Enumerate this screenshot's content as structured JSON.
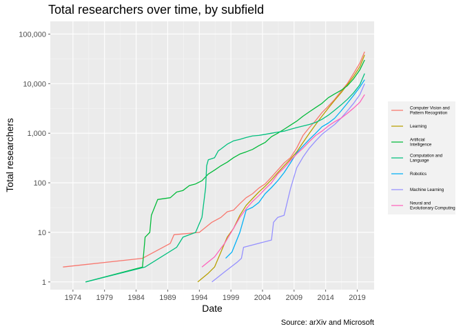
{
  "chart_data": {
    "type": "line",
    "title": "Total researchers over time, by subfield",
    "xlabel": "Date",
    "ylabel": "Total researchers",
    "caption": "Source: arXiv and Microsoft",
    "x_scale": "date",
    "y_scale": "log10",
    "xlim": [
      "1970-06-01",
      "2021-09-01"
    ],
    "ylim": [
      0.7,
      180000
    ],
    "x_ticks": [
      "1974-01-01",
      "1979-01-01",
      "1984-01-01",
      "1989-01-01",
      "1994-01-01",
      "1999-01-01",
      "2004-01-01",
      "2009-01-01",
      "2014-01-01",
      "2019-01-01"
    ],
    "x_tick_labels": [
      "1974",
      "1979",
      "1984",
      "1989",
      "1994",
      "1999",
      "2004",
      "2009",
      "2014",
      "2019"
    ],
    "y_ticks": [
      1,
      10,
      100,
      1000,
      10000,
      100000
    ],
    "y_tick_labels": [
      "1",
      "10",
      "100",
      "1,000",
      "10,000",
      "100,000"
    ],
    "grid": true,
    "legend_position": "right",
    "background": "#ebebeb",
    "series": [
      {
        "name": "Computer Vision and Pattern Recognition",
        "color": "#f8766d",
        "points": [
          [
            "1972-06-01",
            2
          ],
          [
            "1985-01-01",
            3
          ],
          [
            "1989-06-01",
            6
          ],
          [
            "1990-01-01",
            9
          ],
          [
            "1994-01-01",
            10
          ],
          [
            "1996-01-01",
            16
          ],
          [
            "1997-06-01",
            20
          ],
          [
            "1998-06-01",
            26
          ],
          [
            "1999-06-01",
            28
          ],
          [
            "2000-06-01",
            38
          ],
          [
            "2001-06-01",
            50
          ],
          [
            "2002-06-01",
            60
          ],
          [
            "2003-06-01",
            78
          ],
          [
            "2004-06-01",
            95
          ],
          [
            "2005-06-01",
            130
          ],
          [
            "2006-06-01",
            180
          ],
          [
            "2007-06-01",
            250
          ],
          [
            "2008-06-01",
            320
          ],
          [
            "2009-06-01",
            500
          ],
          [
            "2010-06-01",
            900
          ],
          [
            "2011-06-01",
            1300
          ],
          [
            "2012-06-01",
            1800
          ],
          [
            "2013-06-01",
            2600
          ],
          [
            "2014-06-01",
            3500
          ],
          [
            "2015-06-01",
            4800
          ],
          [
            "2016-06-01",
            7000
          ],
          [
            "2017-06-01",
            10000
          ],
          [
            "2018-06-01",
            16000
          ],
          [
            "2019-06-01",
            26000
          ],
          [
            "2020-03-01",
            44000
          ]
        ]
      },
      {
        "name": "Learning",
        "color": "#b79f00",
        "points": [
          [
            "1993-10-01",
            1
          ],
          [
            "1995-06-01",
            1.5
          ],
          [
            "1996-06-01",
            2
          ],
          [
            "1997-06-01",
            4
          ],
          [
            "1998-06-01",
            8
          ],
          [
            "1999-06-01",
            12
          ],
          [
            "2000-06-01",
            22
          ],
          [
            "2001-06-01",
            35
          ],
          [
            "2002-06-01",
            48
          ],
          [
            "2003-06-01",
            65
          ],
          [
            "2004-06-01",
            85
          ],
          [
            "2005-06-01",
            115
          ],
          [
            "2006-06-01",
            160
          ],
          [
            "2007-06-01",
            220
          ],
          [
            "2008-06-01",
            300
          ],
          [
            "2009-06-01",
            420
          ],
          [
            "2010-06-01",
            650
          ],
          [
            "2011-06-01",
            1000
          ],
          [
            "2012-06-01",
            1500
          ],
          [
            "2013-06-01",
            2200
          ],
          [
            "2014-06-01",
            3200
          ],
          [
            "2015-06-01",
            4600
          ],
          [
            "2016-06-01",
            6500
          ],
          [
            "2017-06-01",
            9500
          ],
          [
            "2018-06-01",
            14000
          ],
          [
            "2019-06-01",
            22000
          ],
          [
            "2020-03-01",
            38000
          ]
        ]
      },
      {
        "name": "Artificial Intelligence",
        "color": "#00ba38",
        "points": [
          [
            "1976-01-01",
            1
          ],
          [
            "1985-01-01",
            2
          ],
          [
            "1985-06-01",
            8
          ],
          [
            "1986-03-01",
            10
          ],
          [
            "1986-06-01",
            22
          ],
          [
            "1987-06-01",
            46
          ],
          [
            "1989-06-01",
            50
          ],
          [
            "1990-06-01",
            65
          ],
          [
            "1991-06-01",
            70
          ],
          [
            "1992-06-01",
            88
          ],
          [
            "1993-06-01",
            95
          ],
          [
            "1994-06-01",
            110
          ],
          [
            "1995-06-01",
            150
          ],
          [
            "1996-06-01",
            180
          ],
          [
            "1997-06-01",
            220
          ],
          [
            "1998-06-01",
            260
          ],
          [
            "1999-06-01",
            320
          ],
          [
            "2000-06-01",
            380
          ],
          [
            "2001-06-01",
            420
          ],
          [
            "2002-06-01",
            470
          ],
          [
            "2003-06-01",
            560
          ],
          [
            "2004-06-01",
            650
          ],
          [
            "2005-06-01",
            850
          ],
          [
            "2006-06-01",
            1000
          ],
          [
            "2007-06-01",
            1200
          ],
          [
            "2008-06-01",
            1450
          ],
          [
            "2009-06-01",
            1750
          ],
          [
            "2010-06-01",
            2200
          ],
          [
            "2011-06-01",
            2700
          ],
          [
            "2012-06-01",
            3300
          ],
          [
            "2013-06-01",
            4000
          ],
          [
            "2014-06-01",
            5200
          ],
          [
            "2015-06-01",
            6200
          ],
          [
            "2016-06-01",
            7300
          ],
          [
            "2017-06-01",
            9000
          ],
          [
            "2018-06-01",
            12500
          ],
          [
            "2019-06-01",
            19000
          ],
          [
            "2020-03-01",
            30000
          ]
        ]
      },
      {
        "name": "Computation and Language",
        "color": "#00bf7d",
        "points": [
          [
            "1976-01-01",
            1
          ],
          [
            "1985-06-01",
            2
          ],
          [
            "1990-06-01",
            5
          ],
          [
            "1991-06-01",
            8
          ],
          [
            "1993-06-01",
            10
          ],
          [
            "1994-06-01",
            20
          ],
          [
            "1995-01-01",
            80
          ],
          [
            "1995-03-01",
            220
          ],
          [
            "1995-06-01",
            290
          ],
          [
            "1996-06-01",
            320
          ],
          [
            "1997-01-01",
            440
          ],
          [
            "1997-06-01",
            480
          ],
          [
            "1998-06-01",
            600
          ],
          [
            "1999-06-01",
            700
          ],
          [
            "2000-06-01",
            750
          ],
          [
            "2001-06-01",
            820
          ],
          [
            "2002-06-01",
            880
          ],
          [
            "2003-06-01",
            900
          ],
          [
            "2004-06-01",
            950
          ],
          [
            "2005-06-01",
            1000
          ],
          [
            "2006-06-01",
            1050
          ],
          [
            "2007-06-01",
            1100
          ],
          [
            "2008-06-01",
            1200
          ],
          [
            "2009-06-01",
            1300
          ],
          [
            "2010-06-01",
            1400
          ],
          [
            "2011-06-01",
            1500
          ],
          [
            "2012-06-01",
            1650
          ],
          [
            "2013-06-01",
            1900
          ],
          [
            "2014-06-01",
            2300
          ],
          [
            "2015-06-01",
            2900
          ],
          [
            "2016-06-01",
            3700
          ],
          [
            "2017-06-01",
            4800
          ],
          [
            "2018-06-01",
            6500
          ],
          [
            "2019-06-01",
            9500
          ],
          [
            "2020-03-01",
            16000
          ]
        ]
      },
      {
        "name": "Robotics",
        "color": "#00b0f6",
        "points": [
          [
            "1998-03-01",
            3
          ],
          [
            "1999-03-01",
            4
          ],
          [
            "2000-06-01",
            10
          ],
          [
            "2001-06-01",
            28
          ],
          [
            "2002-06-01",
            32
          ],
          [
            "2003-06-01",
            40
          ],
          [
            "2004-06-01",
            60
          ],
          [
            "2005-06-01",
            80
          ],
          [
            "2006-06-01",
            110
          ],
          [
            "2007-06-01",
            160
          ],
          [
            "2008-06-01",
            250
          ],
          [
            "2009-06-01",
            400
          ],
          [
            "2010-06-01",
            550
          ],
          [
            "2011-06-01",
            750
          ],
          [
            "2012-06-01",
            1000
          ],
          [
            "2013-06-01",
            1350
          ],
          [
            "2014-06-01",
            1600
          ],
          [
            "2015-06-01",
            2000
          ],
          [
            "2016-06-01",
            2800
          ],
          [
            "2017-06-01",
            4000
          ],
          [
            "2018-06-01",
            5800
          ],
          [
            "2019-06-01",
            8500
          ],
          [
            "2020-03-01",
            12000
          ]
        ]
      },
      {
        "name": "Machine Learning",
        "color": "#9590ff",
        "points": [
          [
            "1996-01-01",
            1
          ],
          [
            "1998-01-01",
            1.6
          ],
          [
            "2000-01-01",
            2.5
          ],
          [
            "2000-09-01",
            3
          ],
          [
            "2001-01-01",
            5
          ],
          [
            "2003-06-01",
            6
          ],
          [
            "2005-06-01",
            7
          ],
          [
            "2005-10-01",
            16
          ],
          [
            "2006-06-01",
            20
          ],
          [
            "2007-06-01",
            22
          ],
          [
            "2008-06-01",
            75
          ],
          [
            "2009-06-01",
            200
          ],
          [
            "2010-06-01",
            330
          ],
          [
            "2011-06-01",
            500
          ],
          [
            "2012-06-01",
            700
          ],
          [
            "2013-06-01",
            950
          ],
          [
            "2014-06-01",
            1200
          ],
          [
            "2015-06-01",
            1500
          ],
          [
            "2016-06-01",
            2000
          ],
          [
            "2017-06-01",
            2800
          ],
          [
            "2018-06-01",
            4000
          ],
          [
            "2019-06-01",
            6000
          ],
          [
            "2020-03-01",
            10000
          ]
        ]
      },
      {
        "name": "Neural and Evolutionary Computing",
        "color": "#ff62bc",
        "points": [
          [
            "1994-06-01",
            2
          ],
          [
            "1996-06-01",
            3.2
          ],
          [
            "1998-01-01",
            6
          ],
          [
            "1999-06-01",
            12
          ],
          [
            "2000-06-01",
            20
          ],
          [
            "2001-06-01",
            30
          ],
          [
            "2002-06-01",
            42
          ],
          [
            "2003-06-01",
            55
          ],
          [
            "2004-06-01",
            75
          ],
          [
            "2005-06-01",
            100
          ],
          [
            "2006-06-01",
            150
          ],
          [
            "2007-06-01",
            200
          ],
          [
            "2008-06-01",
            280
          ],
          [
            "2009-06-01",
            380
          ],
          [
            "2010-06-01",
            500
          ],
          [
            "2011-06-01",
            680
          ],
          [
            "2012-06-01",
            900
          ],
          [
            "2013-06-01",
            1100
          ],
          [
            "2014-06-01",
            1400
          ],
          [
            "2015-06-01",
            1700
          ],
          [
            "2016-06-01",
            2000
          ],
          [
            "2017-06-01",
            2500
          ],
          [
            "2018-06-01",
            3200
          ],
          [
            "2019-06-01",
            4200
          ],
          [
            "2020-03-01",
            6000
          ]
        ]
      }
    ]
  }
}
